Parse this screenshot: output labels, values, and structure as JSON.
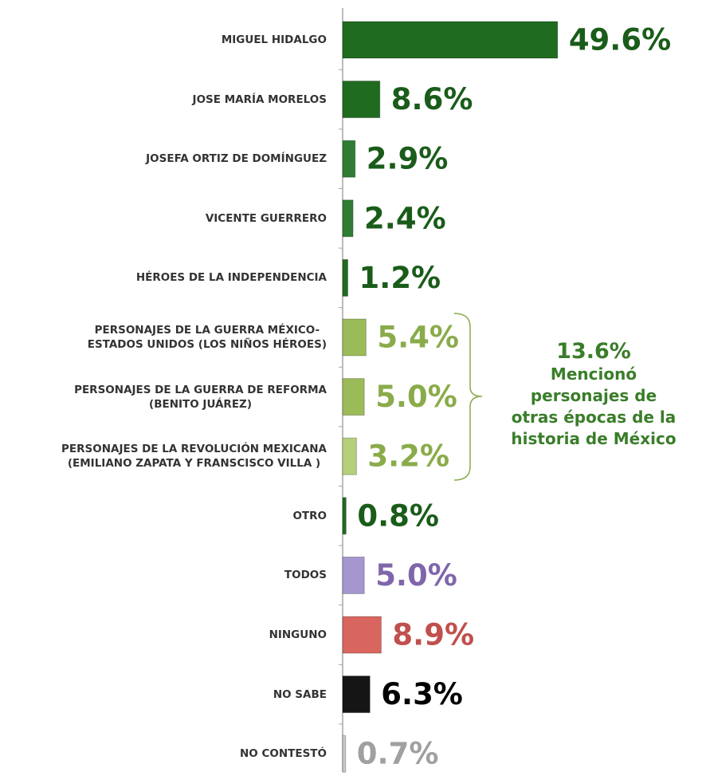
{
  "chart_data": {
    "type": "bar",
    "orientation": "horizontal",
    "categories": [
      "MIGUEL HIDALGO",
      "JOSE MARÍA MORELOS",
      "JOSEFA ORTIZ DE DOMÍNGUEZ",
      "VICENTE GUERRERO",
      "HÉROES DE LA INDEPENDENCIA",
      "PERSONAJES  DE LA GUERRA MÉXICO-\nESTADOS UNIDOS (LOS NIÑOS HÉROES)",
      "PERSONAJES DE LA GUERRA DE REFORMA\n(BENITO JUÁREZ)",
      "PERSONAJES DE LA REVOLUCIÓN MEXICANA\n(EMILIANO ZAPATA Y FRANSCISCO VILLA )",
      "OTRO",
      "TODOS",
      "NINGUNO",
      "NO SABE",
      "NO CONTESTÓ"
    ],
    "values": [
      49.6,
      8.6,
      2.9,
      2.4,
      1.2,
      5.4,
      5.0,
      3.2,
      0.8,
      5.0,
      8.9,
      6.3,
      0.7
    ],
    "value_labels": [
      "49.6%",
      "8.6%",
      "2.9%",
      "2.4%",
      "1.2%",
      "5.4%",
      "5.0%",
      "3.2%",
      "0.8%",
      "5.0%",
      "8.9%",
      "6.3%",
      "0.7%"
    ],
    "colors": [
      "#1f6b1f",
      "#1f6b1f",
      "#2e7d32",
      "#2e7d32",
      "#1f6b1f",
      "#9bbb59",
      "#9bbb59",
      "#b5cf7a",
      "#1f6b1f",
      "#a596d0",
      "#d9665e",
      "#151515",
      "#c8c8c8"
    ],
    "label_colors": [
      "#1a5c1a",
      "#1a5c1a",
      "#1a5c1a",
      "#1a5c1a",
      "#1a5c1a",
      "#8aab4a",
      "#8aab4a",
      "#8aab4a",
      "#1a5c1a",
      "#7f66aa",
      "#c0504d",
      "#000000",
      "#a0a0a0"
    ],
    "xlim": [
      0,
      50
    ],
    "annotation": {
      "value": "13.6%",
      "text": "Mencionó\npersonajes de\notras épocas de la\nhistoria de México",
      "color": "#3a7d2a"
    }
  }
}
